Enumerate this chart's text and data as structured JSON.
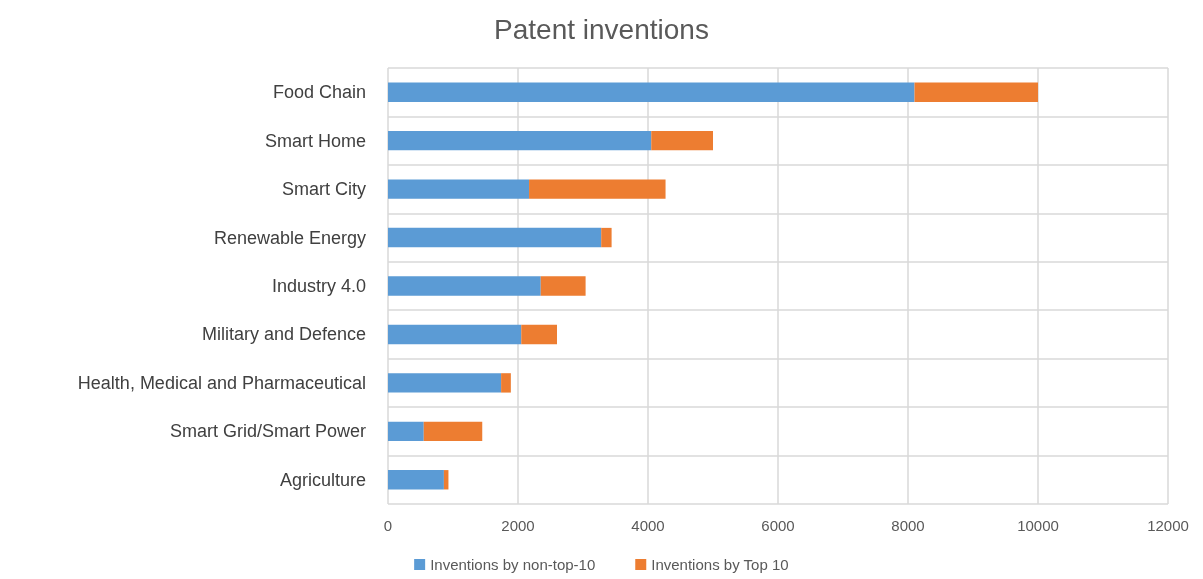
{
  "chart_data": {
    "type": "bar",
    "title": "Patent inventions",
    "orientation": "horizontal",
    "stacked": true,
    "categories": [
      "Food Chain",
      "Smart Home",
      "Smart City",
      "Renewable Energy",
      "Industry 4.0",
      "Military and Defence",
      "Health, Medical and Pharmaceutical",
      "Smart Grid/Smart Power",
      "Agriculture"
    ],
    "series": [
      {
        "name": "Inventions by non-top-10",
        "color": "#5b9bd5",
        "values": [
          8100,
          4050,
          2170,
          3280,
          2350,
          2050,
          1740,
          550,
          860
        ]
      },
      {
        "name": "Inventions by Top 10",
        "color": "#ed7d31",
        "values": [
          1900,
          950,
          2100,
          160,
          690,
          550,
          150,
          900,
          70
        ]
      }
    ],
    "xlim": [
      0,
      12000
    ],
    "xticks": [
      0,
      2000,
      4000,
      6000,
      8000,
      10000,
      12000
    ],
    "grid": true,
    "legend": "bottom"
  }
}
